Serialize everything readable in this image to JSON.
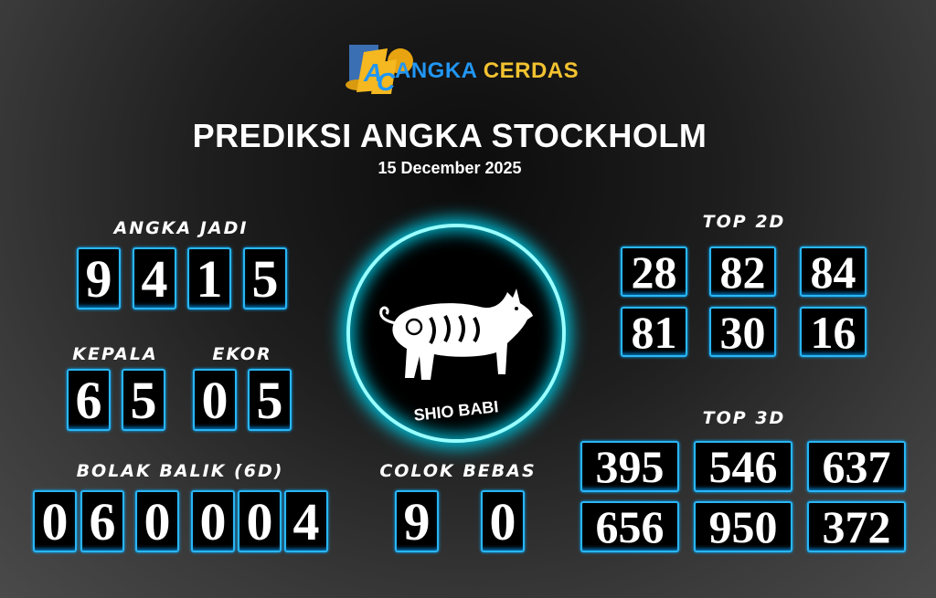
{
  "logo": {
    "brand_part1": "ANGKA",
    "brand_part2": "CERDAS",
    "mark": "AC"
  },
  "header": {
    "title": "PREDIKSI ANGKA STOCKHOLM",
    "date": "15 December 2025"
  },
  "angka_jadi": {
    "label": "ANGKA JADI",
    "digits": [
      "9",
      "4",
      "1",
      "5"
    ]
  },
  "kepala": {
    "label": "KEPALA",
    "digits": [
      "6",
      "5"
    ]
  },
  "ekor": {
    "label": "EKOR",
    "digits": [
      "0",
      "5"
    ]
  },
  "bolak_balik": {
    "label": "BOLAK BALIK (6D)",
    "digits": [
      "0",
      "6",
      "0",
      "0",
      "0",
      "4"
    ]
  },
  "colok_bebas": {
    "label": "COLOK BEBAS",
    "digits": [
      "9",
      "0"
    ]
  },
  "shio": {
    "label": "SHIO BABI",
    "icon": "pig-icon"
  },
  "top2d": {
    "label": "TOP 2D",
    "values": [
      "28",
      "82",
      "84",
      "81",
      "30",
      "16"
    ]
  },
  "top3d": {
    "label": "TOP 3D",
    "values": [
      "395",
      "546",
      "637",
      "656",
      "950",
      "372"
    ]
  },
  "colors": {
    "accent": "#29b6f6",
    "glow": "#00bcd4",
    "brand_blue": "#2196f3",
    "brand_gold": "#f2c230"
  }
}
